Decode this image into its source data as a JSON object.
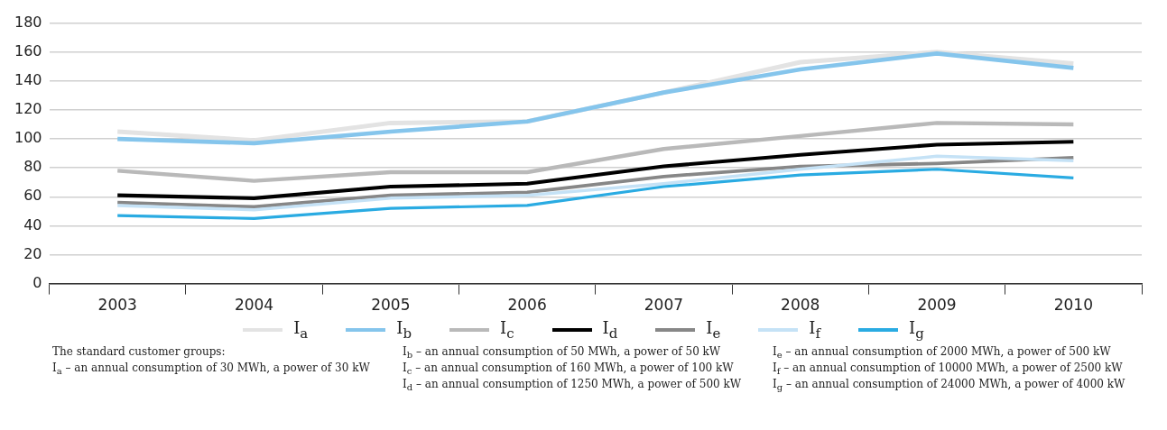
{
  "chart_data": {
    "type": "line",
    "categories": [
      "2003",
      "2004",
      "2005",
      "2006",
      "2007",
      "2008",
      "2009",
      "2010"
    ],
    "series": [
      {
        "name": "I$_{a}$",
        "color": "#e3e3e3",
        "values": [
          105,
          99,
          111,
          112,
          132,
          153,
          160,
          152
        ]
      },
      {
        "name": "I$_{b}$",
        "color": "#85c5ec",
        "values": [
          100,
          97,
          105,
          112,
          132,
          148,
          159,
          149
        ]
      },
      {
        "name": "I$_{c}$",
        "color": "#b9b9b9",
        "values": [
          78,
          71,
          77,
          77,
          93,
          102,
          111,
          110
        ]
      },
      {
        "name": "I$_{d}$",
        "color": "#000000",
        "values": [
          61,
          59,
          67,
          69,
          81,
          89,
          96,
          98
        ]
      },
      {
        "name": "I$_{e}$",
        "color": "#878787",
        "values": [
          56,
          53,
          61,
          63,
          74,
          81,
          83,
          87
        ]
      },
      {
        "name": "I$_{f}$",
        "color": "#c5e2f6",
        "values": [
          54,
          51,
          59,
          61,
          69,
          79,
          88,
          85
        ]
      },
      {
        "name": "I$_{g}$",
        "color": "#2aabe2",
        "values": [
          47,
          45,
          52,
          54,
          67,
          75,
          79,
          73
        ]
      }
    ],
    "ylim": [
      0,
      180
    ],
    "yticks": [
      0,
      20,
      40,
      60,
      80,
      100,
      120,
      140,
      160,
      180
    ],
    "grid": "y",
    "legend": "bottom",
    "marker": "none",
    "line_style": "solid",
    "annotations": [
      "The standard customer groups:",
      "I$_{a}$ – an annual consumption of 30 MWh, a power of 30 kW",
      "I$_{b}$ – an annual consumption of 50 MWh, a power of 50 kW",
      "I$_{c}$ – an annual consumption of 160 MWh, a power of 100 kW",
      "I$_{d}$ – an annual consumption of 1250 MWh, a power of 500 kW",
      "I$_{e}$ – an annual consumption of 2000 MWh, a power of 500 kW",
      "I$_{f}$ – an annual consumption of 10000 MWh, a power of 2500 kW",
      "I$_{g}$ – an annual consumption of 24000 MWh, a power of 4000 kW"
    ]
  }
}
